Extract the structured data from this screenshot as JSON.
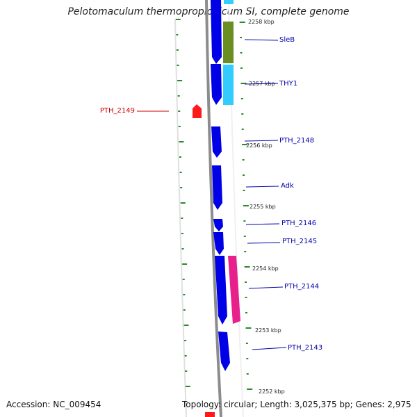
{
  "title": "Pelotomaculum thermopropionicum SI, complete genome",
  "accession": "Accession: NC_009454",
  "summary": "Topology: circular; Length: 3,025,375 bp; Genes: 2,975",
  "colors": {
    "backbone": "#8c8c8c",
    "gene_forward": "#0000e6",
    "gene_reverse": "#ff1a1a",
    "tick": "#2a8a2a",
    "label_forward": "#0000aa",
    "label_reverse": "#cc0000",
    "feature_sleb": "#6b8e23",
    "feature_thy1": "#33ccff",
    "feature_pth2144": "#e8208c"
  },
  "scale_labels": [
    "2258 kbp",
    "2257 kbp",
    "2256 kbp",
    "2255 kbp",
    "2254 kbp",
    "2253 kbp",
    "2252 kbp"
  ],
  "gene_labels": [
    {
      "text": "SleB",
      "strand": "forward"
    },
    {
      "text": "THY1",
      "strand": "forward"
    },
    {
      "text": "PTH_2149",
      "strand": "reverse"
    },
    {
      "text": "PTH_2148",
      "strand": "forward"
    },
    {
      "text": "Adk",
      "strand": "forward"
    },
    {
      "text": "PTH_2146",
      "strand": "forward"
    },
    {
      "text": "PTH_2145",
      "strand": "forward"
    },
    {
      "text": "PTH_2144",
      "strand": "forward"
    },
    {
      "text": "PTH_2143",
      "strand": "forward"
    }
  ]
}
